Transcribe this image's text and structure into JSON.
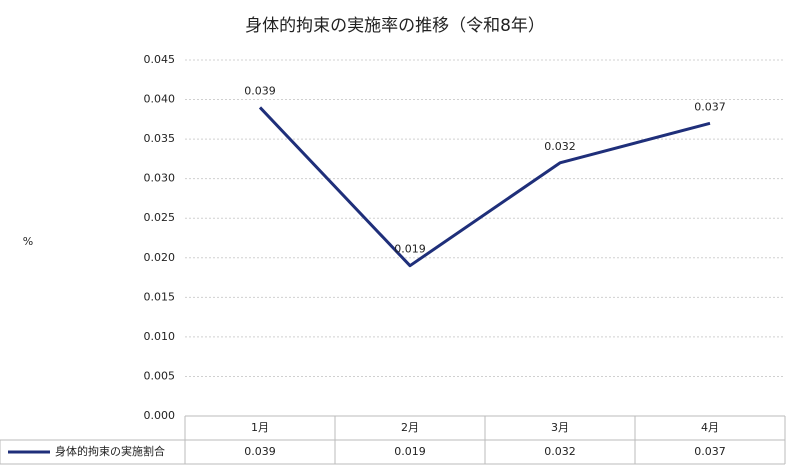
{
  "chart_data": {
    "type": "line",
    "title": "身体的拘束の実施率の推移（令和8年）",
    "y_label": "%",
    "categories": [
      "1月",
      "2月",
      "3月",
      "4月"
    ],
    "series": [
      {
        "name": "身体的拘束の実施割合",
        "color": "#1f2f7a",
        "values": [
          0.039,
          0.019,
          0.032,
          0.037
        ]
      }
    ],
    "ylim": [
      0,
      0.045
    ],
    "yticks": [
      {
        "value": 0,
        "label": "0.000"
      },
      {
        "value": 0.005,
        "label": "0.005"
      },
      {
        "value": 0.01,
        "label": "0.010"
      },
      {
        "value": 0.015,
        "label": "0.015"
      },
      {
        "value": 0.02,
        "label": "0.020"
      },
      {
        "value": 0.025,
        "label": "0.025"
      },
      {
        "value": 0.03,
        "label": "0.030"
      },
      {
        "value": 0.035,
        "label": "0.035"
      },
      {
        "value": 0.04,
        "label": "0.040"
      },
      {
        "value": 0.045,
        "label": "0.045"
      }
    ],
    "grid": true,
    "data_table": true
  }
}
